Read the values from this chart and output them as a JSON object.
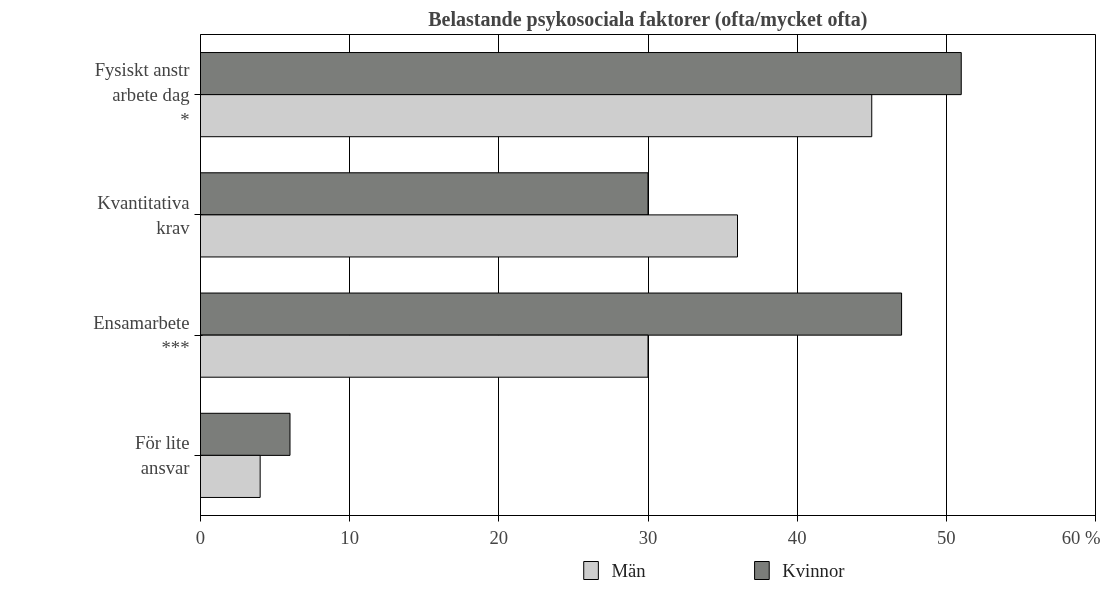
{
  "chart_data": {
    "type": "bar",
    "orientation": "horizontal",
    "title": "Belastande psykosociala faktorer (ofta/mycket ofta)",
    "categories": [
      "Fysiskt anstr\narbete dag\n*",
      "Kvantitativa\nkrav",
      "Ensamarbete\n***",
      "För lite\nansvar"
    ],
    "series": [
      {
        "name": "Kvinnor",
        "color": "#7b7d7a",
        "values": [
          51,
          30,
          47,
          6
        ]
      },
      {
        "name": "Män",
        "color": "#cecece",
        "values": [
          45,
          36,
          30,
          4
        ]
      }
    ],
    "xlim": [
      0,
      60
    ],
    "xticks": [
      0,
      10,
      20,
      30,
      40,
      50,
      {
        "value": 60,
        "label": "60 %"
      }
    ],
    "grid": "x",
    "legend": "bottom"
  }
}
